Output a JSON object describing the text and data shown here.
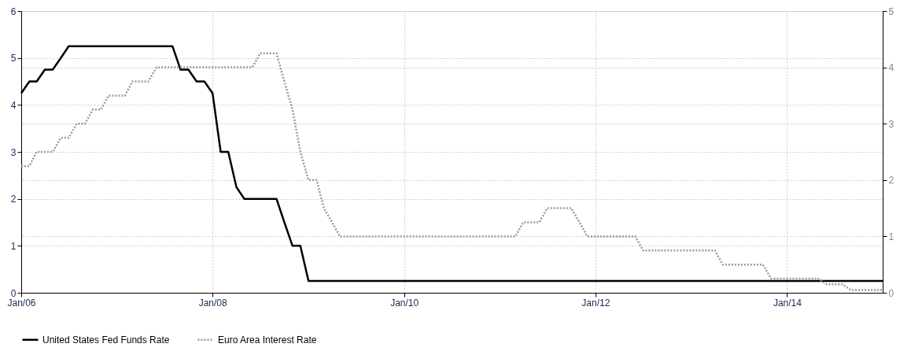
{
  "chart_data": {
    "type": "line",
    "xlim": [
      "2006-01",
      "2015-01"
    ],
    "xticks": [
      {
        "value": "2006-01",
        "label": "Jan/06"
      },
      {
        "value": "2008-01",
        "label": "Jan/08"
      },
      {
        "value": "2010-01",
        "label": "Jan/10"
      },
      {
        "value": "2012-01",
        "label": "Jan/12"
      },
      {
        "value": "2014-01",
        "label": "Jan/14"
      }
    ],
    "ylim": [
      0,
      6
    ],
    "yticks": [
      0,
      1,
      2,
      3,
      4,
      5,
      6
    ],
    "y2lim": [
      0,
      5
    ],
    "y2ticks": [
      0,
      1,
      2,
      3,
      4,
      5
    ],
    "grid": true,
    "legend": "bottom",
    "series": [
      {
        "name": "United States Fed Funds Rate",
        "color": "#000000",
        "line_style": "solid",
        "axis": "y",
        "x": [
          "2006-01",
          "2006-02",
          "2006-03",
          "2006-04",
          "2006-05",
          "2006-06",
          "2006-07",
          "2007-08",
          "2007-09",
          "2007-10",
          "2007-11",
          "2007-12",
          "2008-01",
          "2008-02",
          "2008-03",
          "2008-04",
          "2008-05",
          "2008-09",
          "2008-10",
          "2008-11",
          "2008-12",
          "2009-01",
          "2015-01"
        ],
        "values": [
          4.25,
          4.5,
          4.5,
          4.75,
          4.75,
          5.0,
          5.25,
          5.25,
          4.75,
          4.75,
          4.5,
          4.5,
          4.25,
          3.0,
          3.0,
          2.25,
          2.0,
          2.0,
          1.5,
          1.0,
          1.0,
          0.25,
          0.25
        ]
      },
      {
        "name": "Euro Area Interest Rate",
        "color": "#999999",
        "line_style": "dotted",
        "axis": "y2",
        "x": [
          "2006-01",
          "2006-02",
          "2006-03",
          "2006-05",
          "2006-06",
          "2006-07",
          "2006-08",
          "2006-09",
          "2006-10",
          "2006-11",
          "2006-12",
          "2007-02",
          "2007-03",
          "2007-05",
          "2007-06",
          "2008-06",
          "2008-07",
          "2008-09",
          "2008-10",
          "2008-11",
          "2008-12",
          "2009-01",
          "2009-02",
          "2009-03",
          "2009-04",
          "2009-05",
          "2011-03",
          "2011-04",
          "2011-06",
          "2011-07",
          "2011-10",
          "2011-11",
          "2011-12",
          "2012-06",
          "2012-07",
          "2013-04",
          "2013-05",
          "2013-10",
          "2013-11",
          "2014-05",
          "2014-06",
          "2014-08",
          "2014-09",
          "2015-01"
        ],
        "values": [
          2.25,
          2.25,
          2.5,
          2.5,
          2.75,
          2.75,
          3.0,
          3.0,
          3.25,
          3.25,
          3.5,
          3.5,
          3.75,
          3.75,
          4.0,
          4.0,
          4.25,
          4.25,
          3.75,
          3.25,
          2.5,
          2.0,
          2.0,
          1.5,
          1.25,
          1.0,
          1.0,
          1.25,
          1.25,
          1.5,
          1.5,
          1.25,
          1.0,
          1.0,
          0.75,
          0.75,
          0.5,
          0.5,
          0.25,
          0.25,
          0.15,
          0.15,
          0.05,
          0.05
        ]
      }
    ]
  }
}
